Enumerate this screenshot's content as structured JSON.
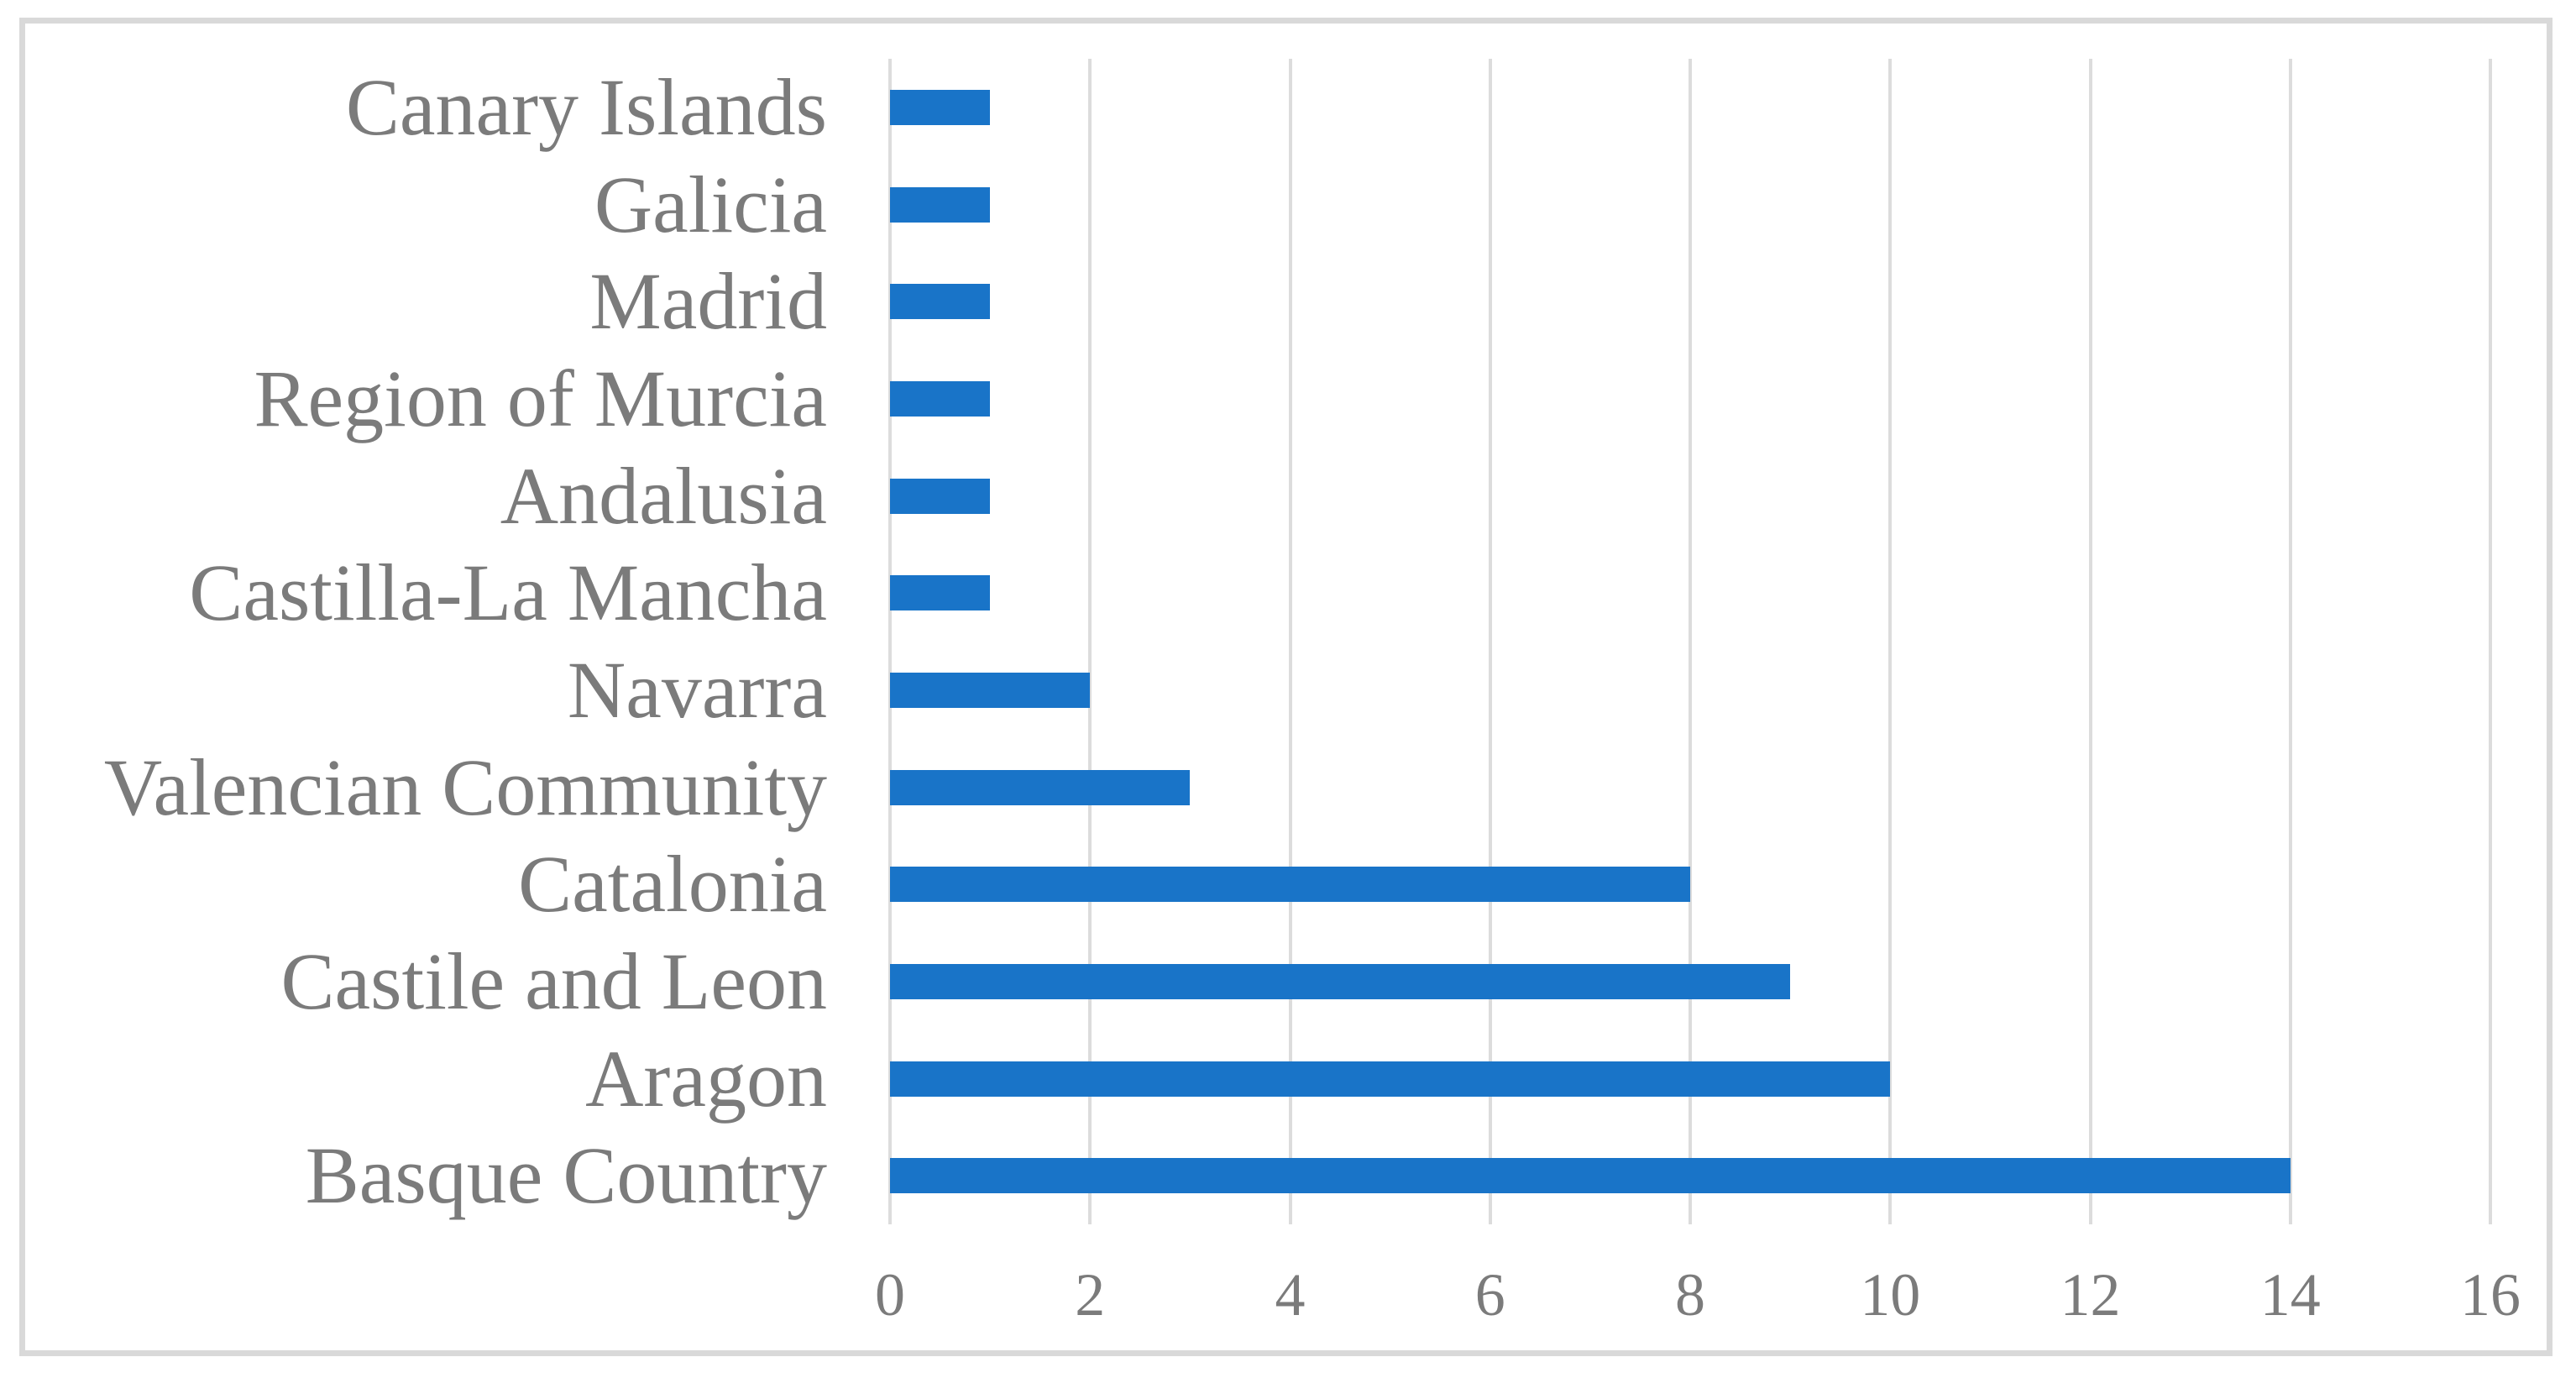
{
  "chart_data": {
    "type": "bar",
    "orientation": "horizontal",
    "title": "",
    "xlabel": "",
    "ylabel": "",
    "categories": [
      "Canary Islands",
      "Galicia",
      "Madrid",
      "Region of Murcia",
      "Andalusia",
      "Castilla-La Mancha",
      "Navarra",
      "Valencian Community",
      "Catalonia",
      "Castile and Leon",
      "Aragon",
      "Basque Country"
    ],
    "values": [
      1,
      1,
      1,
      1,
      1,
      1,
      2,
      3,
      8,
      9,
      10,
      14
    ],
    "xlim": [
      0,
      16
    ],
    "x_ticks": [
      0,
      2,
      4,
      6,
      8,
      10,
      12,
      14,
      16
    ],
    "grid": "vertical",
    "legend": "none",
    "colors": {
      "bar": "#1974C8",
      "gridline": "#DCDCDC",
      "text": "#7B7B7B",
      "chart_border": "#D9D9D9",
      "background": "#FFFFFF"
    }
  }
}
